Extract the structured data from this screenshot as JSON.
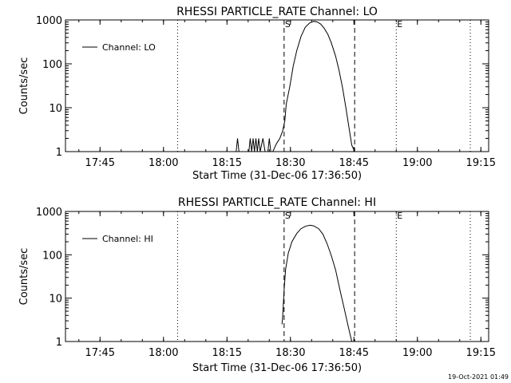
{
  "footer_timestamp": "19-Oct-2021 01:49",
  "chart_data": [
    {
      "type": "line",
      "title": "RHESSI PARTICLE_RATE Channel: LO",
      "xlabel": "Start Time (31-Dec-06 17:36:50)",
      "ylabel": "Counts/sec",
      "y_scale": "log",
      "ylim": [
        1,
        1000
      ],
      "xlim_minutes_after_1736_50": [
        0,
        100
      ],
      "x_tick_labels": [
        "17:45",
        "18:00",
        "18:15",
        "18:30",
        "18:45",
        "19:00",
        "19:15"
      ],
      "y_tick_labels": [
        "1",
        "10",
        "100",
        "1000"
      ],
      "legend": {
        "position": "top-left",
        "entries": [
          {
            "label": "Channel: LO"
          }
        ]
      },
      "markers": [
        {
          "label": "S",
          "time": "18:28:30",
          "style": "dashed"
        },
        {
          "label": "",
          "time": "18:45:10",
          "style": "dashed"
        },
        {
          "label": "E",
          "time": "18:55:00",
          "style": "dotted"
        },
        {
          "label": "",
          "time": "18:03:20",
          "style": "dotted"
        },
        {
          "label": "",
          "time": "19:12:30",
          "style": "dotted"
        }
      ],
      "series": [
        {
          "name": "Channel: LO",
          "points": [
            [
              "18:17:10",
              1
            ],
            [
              "18:17:30",
              2
            ],
            [
              "18:17:50",
              1
            ],
            [
              "18:20:10",
              1
            ],
            [
              "18:20:30",
              2
            ],
            [
              "18:20:50",
              1
            ],
            [
              "18:21:10",
              2
            ],
            [
              "18:21:30",
              1
            ],
            [
              "18:21:50",
              2
            ],
            [
              "18:22:10",
              1
            ],
            [
              "18:22:30",
              2
            ],
            [
              "18:22:50",
              1
            ],
            [
              "18:23:30",
              2
            ],
            [
              "18:24:00",
              1
            ],
            [
              "18:24:40",
              1
            ],
            [
              "18:25:00",
              2
            ],
            [
              "18:25:20",
              1
            ],
            [
              "18:25:50",
              1
            ],
            [
              "18:26:40",
              1.5
            ],
            [
              "18:27:30",
              2
            ],
            [
              "18:28:10",
              3
            ],
            [
              "18:28:40",
              5
            ],
            [
              "18:29:00",
              12
            ],
            [
              "18:29:50",
              30
            ],
            [
              "18:30:40",
              90
            ],
            [
              "18:31:30",
              200
            ],
            [
              "18:32:30",
              420
            ],
            [
              "18:33:30",
              680
            ],
            [
              "18:34:30",
              850
            ],
            [
              "18:35:30",
              930
            ],
            [
              "18:36:20",
              900
            ],
            [
              "18:37:10",
              800
            ],
            [
              "18:38:00",
              640
            ],
            [
              "18:38:50",
              470
            ],
            [
              "18:39:40",
              300
            ],
            [
              "18:40:40",
              150
            ],
            [
              "18:41:30",
              70
            ],
            [
              "18:42:20",
              28
            ],
            [
              "18:43:10",
              9
            ],
            [
              "18:43:50",
              3.5
            ],
            [
              "18:44:30",
              1.4
            ],
            [
              "18:45:10",
              1
            ]
          ]
        }
      ]
    },
    {
      "type": "line",
      "title": "RHESSI PARTICLE_RATE Channel: HI",
      "xlabel": "Start Time (31-Dec-06 17:36:50)",
      "ylabel": "Counts/sec",
      "y_scale": "log",
      "ylim": [
        1,
        1000
      ],
      "xlim_minutes_after_1736_50": [
        0,
        100
      ],
      "x_tick_labels": [
        "17:45",
        "18:00",
        "18:15",
        "18:30",
        "18:45",
        "19:00",
        "19:15"
      ],
      "y_tick_labels": [
        "1",
        "10",
        "100",
        "1000"
      ],
      "legend": {
        "position": "top-left",
        "entries": [
          {
            "label": "Channel: HI"
          }
        ]
      },
      "markers": [
        {
          "label": "S",
          "time": "18:28:30",
          "style": "dashed"
        },
        {
          "label": "",
          "time": "18:45:10",
          "style": "dashed"
        },
        {
          "label": "E",
          "time": "18:55:00",
          "style": "dotted"
        },
        {
          "label": "",
          "time": "18:03:20",
          "style": "dotted"
        },
        {
          "label": "",
          "time": "19:12:30",
          "style": "dotted"
        }
      ],
      "series": [
        {
          "name": "Channel: HI",
          "points": [
            [
              "18:28:00",
              2.5
            ],
            [
              "18:28:10",
              4
            ],
            [
              "18:28:30",
              15
            ],
            [
              "18:28:50",
              45
            ],
            [
              "18:29:30",
              110
            ],
            [
              "18:30:20",
              200
            ],
            [
              "18:31:30",
              310
            ],
            [
              "18:32:30",
              400
            ],
            [
              "18:33:40",
              460
            ],
            [
              "18:34:40",
              480
            ],
            [
              "18:35:30",
              465
            ],
            [
              "18:36:40",
              400
            ],
            [
              "18:37:40",
              300
            ],
            [
              "18:38:40",
              180
            ],
            [
              "18:39:40",
              95
            ],
            [
              "18:40:40",
              45
            ],
            [
              "18:41:40",
              16
            ],
            [
              "18:42:40",
              6
            ],
            [
              "18:43:40",
              2.2
            ],
            [
              "18:44:30",
              1
            ]
          ]
        }
      ]
    }
  ]
}
